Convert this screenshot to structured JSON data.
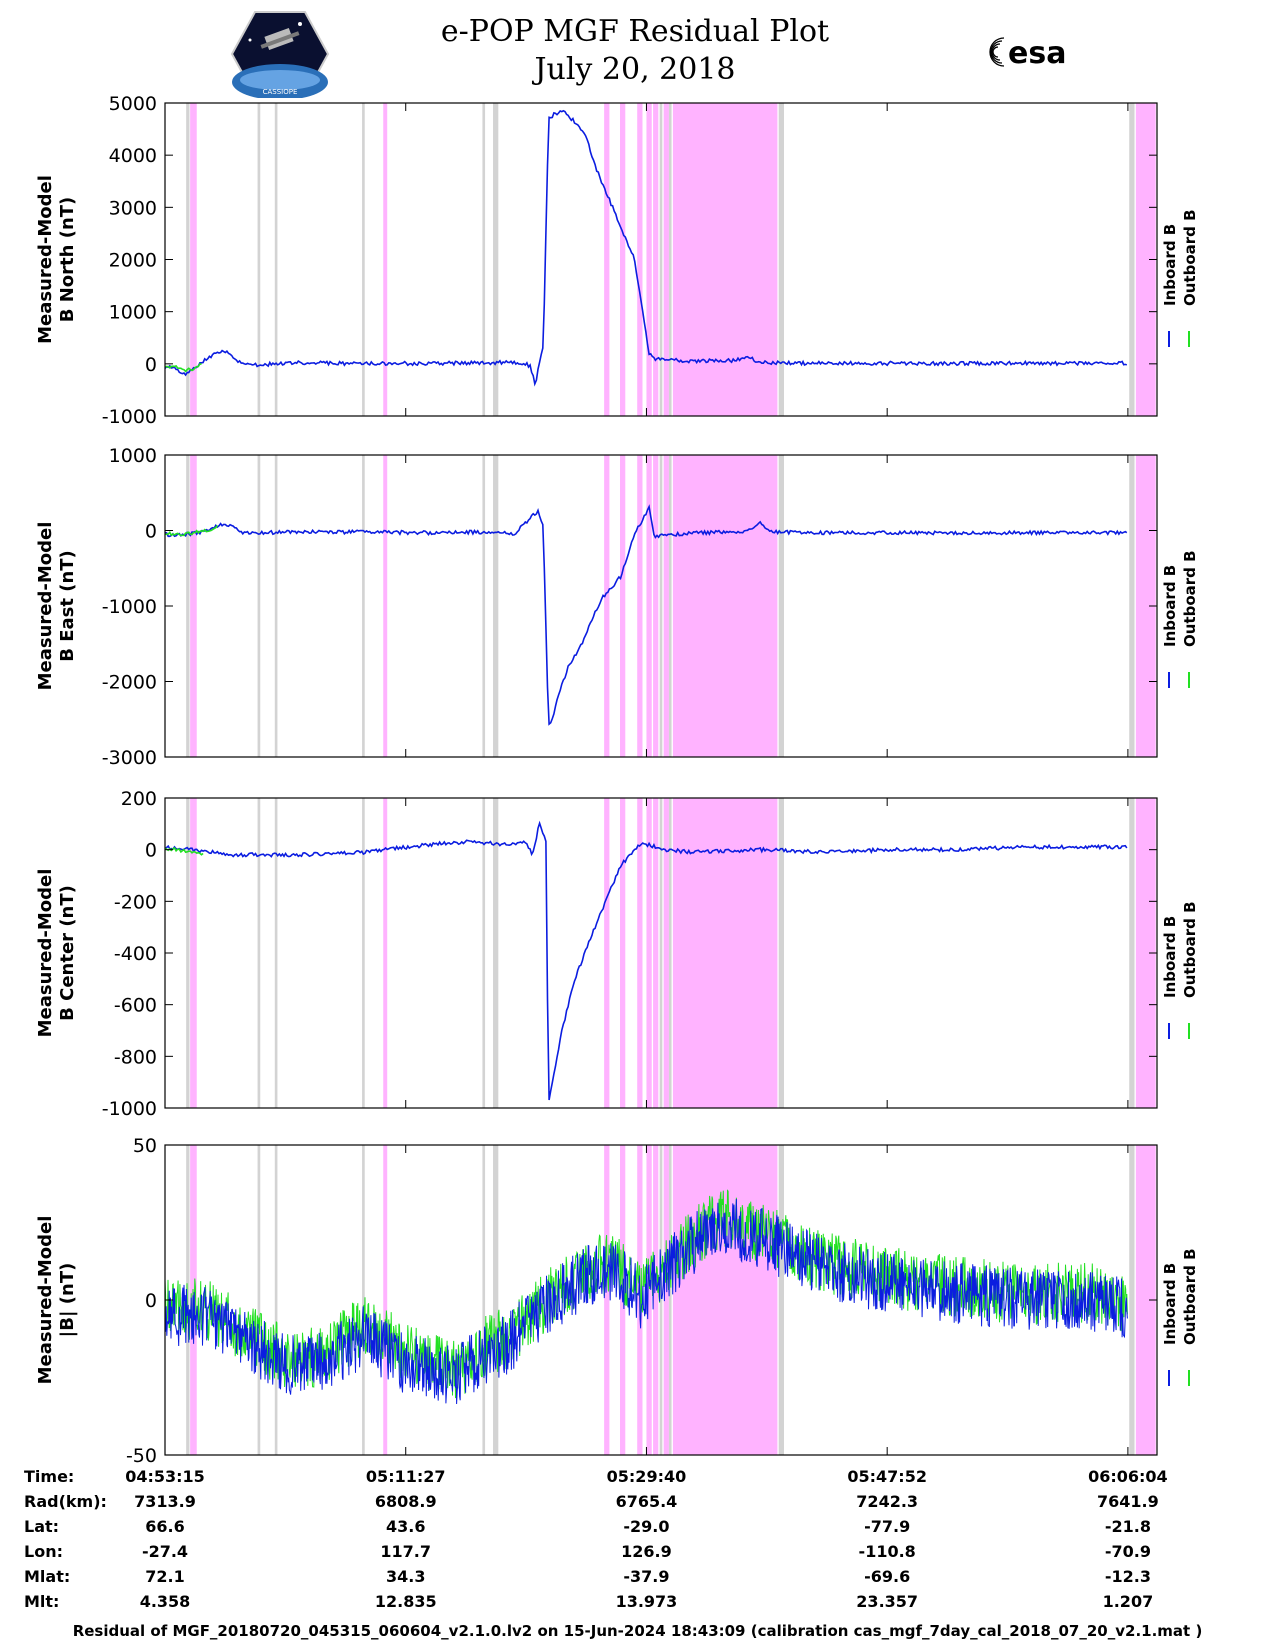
{
  "header": {
    "title_line1": "e-POP MGF Residual Plot",
    "title_line2": "July 20, 2018",
    "left_logo": "cassiope-satellite-logo",
    "left_logo_text": "CASSIOPE",
    "right_logo": "esa-logo",
    "right_logo_text": "esa"
  },
  "legend": {
    "inboard": "Inboard B",
    "outboard": "Outboard B"
  },
  "colors": {
    "inboard": "#0b1de0",
    "outboard": "#22e022",
    "flag_magenta": "#ffb3ff",
    "flag_gray": "#d3d3d3"
  },
  "chart_data": [
    {
      "type": "line",
      "ylabel": [
        "Measured-Model",
        "B North (nT)"
      ],
      "ylim": [
        -1000,
        5000
      ],
      "yticks": [
        "5000",
        "4000",
        "3000",
        "2000",
        "1000",
        "0",
        "-1000"
      ],
      "series": [
        {
          "name": "Inboard B",
          "x": [
            0,
            0.7,
            1.5,
            2.2,
            2.8,
            3.5,
            4.5,
            6,
            10,
            15,
            20,
            24,
            26.5,
            27.3,
            27.6,
            28.0,
            28.3,
            28.6,
            29.0,
            29.5,
            30.2,
            31.8,
            32.5,
            33.0,
            35.5,
            36.6,
            37.0,
            40,
            43,
            44,
            45,
            50,
            55,
            60,
            72.8
          ],
          "y": [
            -50,
            -80,
            -200,
            -100,
            50,
            150,
            250,
            -30,
            20,
            5,
            10,
            20,
            30,
            10,
            -50,
            -400,
            50,
            300,
            4700,
            4800,
            4850,
            4400,
            3800,
            3500,
            2000,
            200,
            100,
            50,
            60,
            150,
            20,
            10,
            10,
            10,
            10
          ]
        },
        {
          "name": "Outboard B",
          "x": [
            0,
            0.7,
            1.5,
            2.2,
            2.8
          ],
          "y": [
            -30,
            -60,
            -150,
            -80,
            30
          ]
        }
      ]
    },
    {
      "type": "line",
      "ylabel": [
        "Measured-Model",
        "B East (nT)"
      ],
      "ylim": [
        -3000,
        1000
      ],
      "yticks": [
        "1000",
        "0",
        "-1000",
        "-2000",
        "-3000"
      ],
      "series": [
        {
          "name": "Inboard B",
          "x": [
            0,
            1,
            2,
            3,
            4.5,
            6,
            10,
            15,
            20,
            24,
            26.5,
            27.5,
            28.2,
            28.6,
            29.0,
            29.3,
            29.7,
            30.5,
            31.5,
            33.0,
            34.5,
            35.5,
            36.6,
            37.0,
            40,
            44,
            45,
            46,
            50,
            60,
            72.8
          ],
          "y": [
            -50,
            -60,
            -40,
            -20,
            100,
            -30,
            -20,
            -20,
            -30,
            -20,
            -40,
            150,
            250,
            50,
            -2600,
            -2500,
            -2200,
            -1800,
            -1500,
            -900,
            -600,
            -50,
            300,
            -80,
            -30,
            -20,
            100,
            -20,
            -30,
            -30,
            -30
          ]
        },
        {
          "name": "Outboard B",
          "x": [
            0,
            1,
            2,
            3,
            4
          ],
          "y": [
            -40,
            -50,
            -30,
            -10,
            60
          ]
        }
      ]
    },
    {
      "type": "line",
      "ylabel": [
        "Measured-Model",
        "B Center (nT)"
      ],
      "ylim": [
        -1000,
        200
      ],
      "yticks": [
        "200",
        "0",
        "-200",
        "-400",
        "-600",
        "-800",
        "-1000"
      ],
      "series": [
        {
          "name": "Inboard B",
          "x": [
            0,
            2,
            5,
            10,
            15,
            20,
            23,
            26,
            27.3,
            27.8,
            28.3,
            28.8,
            29.0,
            29.3,
            30.0,
            31.0,
            32.5,
            33.3,
            34.5,
            35.8,
            36.6,
            37.5,
            40,
            45,
            50,
            55,
            60,
            65,
            72.8
          ],
          "y": [
            10,
            0,
            -20,
            -20,
            -10,
            20,
            30,
            20,
            30,
            -20,
            100,
            30,
            -980,
            -900,
            -700,
            -500,
            -300,
            -200,
            -60,
            20,
            20,
            0,
            -10,
            0,
            -10,
            0,
            0,
            10,
            10
          ]
        },
        {
          "name": "Outboard B",
          "x": [
            0,
            1,
            2,
            3
          ],
          "y": [
            5,
            0,
            -10,
            -20
          ]
        }
      ]
    },
    {
      "type": "line",
      "ylabel": [
        "Measured-Model",
        "|B| (nT)"
      ],
      "ylim": [
        -50,
        50
      ],
      "yticks": [
        "50",
        "0",
        "-50"
      ],
      "series": [
        {
          "name": "Inboard B",
          "x": [
            0,
            3,
            6,
            8,
            10,
            12,
            15,
            18,
            22,
            24,
            26,
            28,
            30,
            32,
            34,
            36,
            38,
            40,
            42,
            45,
            50,
            55,
            60,
            65,
            70,
            72.8
          ],
          "y": [
            -5,
            -5,
            -12,
            -18,
            -22,
            -20,
            -12,
            -20,
            -25,
            -18,
            -14,
            -5,
            2,
            8,
            10,
            0,
            10,
            18,
            25,
            20,
            10,
            5,
            2,
            0,
            0,
            -3
          ]
        },
        {
          "name": "Outboard B",
          "x": [
            0,
            3,
            6,
            8,
            10,
            12,
            15,
            18,
            22,
            24,
            26,
            28,
            30,
            32,
            34,
            36,
            38,
            40,
            42,
            45,
            50,
            55,
            60,
            65,
            70,
            72.8
          ],
          "y": [
            -3,
            -3,
            -10,
            -16,
            -20,
            -18,
            -8,
            -16,
            -23,
            -15,
            -12,
            -3,
            4,
            10,
            12,
            2,
            12,
            20,
            27,
            22,
            12,
            7,
            4,
            2,
            2,
            -1
          ]
        }
      ]
    }
  ],
  "flags": {
    "magenta": [
      [
        1.9,
        2.4
      ],
      [
        16.5,
        16.8
      ],
      [
        33.2,
        33.6
      ],
      [
        34.4,
        34.8
      ],
      [
        35.7,
        36.1
      ],
      [
        36.4,
        36.8
      ],
      [
        36.9,
        37.3
      ],
      [
        37.7,
        38.1
      ],
      [
        38.4,
        46.3
      ],
      [
        73.4,
        74.9
      ]
    ],
    "gray": [
      [
        1.6,
        1.85
      ],
      [
        7.0,
        7.2
      ],
      [
        8.3,
        8.5
      ],
      [
        14.9,
        15.1
      ],
      [
        24.0,
        24.2
      ],
      [
        24.8,
        25.2
      ],
      [
        37.4,
        37.6
      ],
      [
        38.1,
        38.3
      ],
      [
        46.4,
        46.8
      ],
      [
        72.9,
        73.3
      ]
    ]
  },
  "x_axis": {
    "range": [
      0,
      75
    ],
    "tick_positions": [
      0,
      18.2,
      36.4,
      54.6,
      72.8
    ],
    "row_labels": [
      "Time:",
      "Rad(km):",
      "Lat:",
      "Lon:",
      "Mlat:",
      "Mlt:"
    ],
    "columns": [
      [
        "04:53:15",
        "7313.9",
        "66.6",
        "-27.4",
        "72.1",
        "4.358"
      ],
      [
        "05:11:27",
        "6808.9",
        "43.6",
        "117.7",
        "34.3",
        "12.835"
      ],
      [
        "05:29:40",
        "6765.4",
        "-29.0",
        "126.9",
        "-37.9",
        "13.973"
      ],
      [
        "05:47:52",
        "7242.3",
        "-77.9",
        "-110.8",
        "-69.6",
        "23.357"
      ],
      [
        "06:06:04",
        "7641.9",
        "-21.8",
        "-70.9",
        "-12.3",
        "1.207"
      ]
    ]
  },
  "footer": "Residual of MGF_20180720_045315_060604_v2.1.0.lv2 on 15-Jun-2024 18:43:09 (calibration cas_mgf_7day_cal_2018_07_20_v2.1.mat )"
}
